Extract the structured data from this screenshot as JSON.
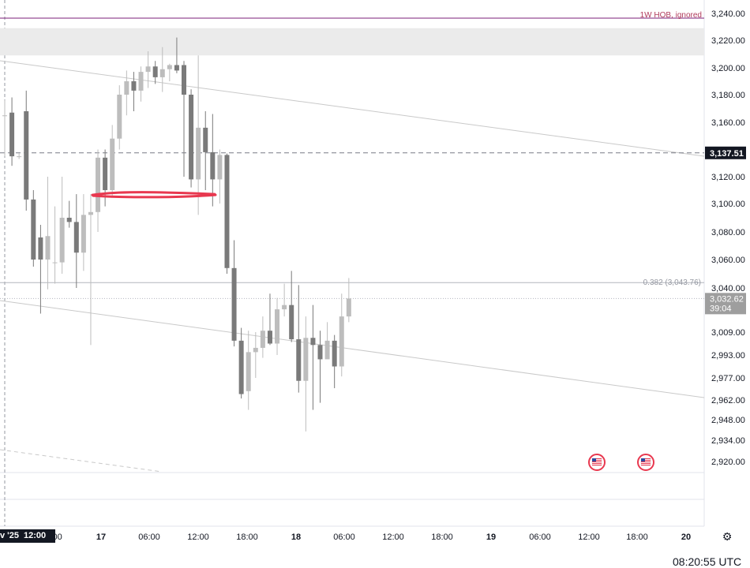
{
  "chart_data": {
    "type": "candlestick",
    "y_ticks": [
      "3,240.00",
      "3,220.00",
      "3,200.00",
      "3,180.00",
      "3,160.00",
      "3,120.00",
      "3,100.00",
      "3,080.00",
      "3,060.00",
      "3,040.00",
      "3,009.00",
      "2,993.00",
      "2,977.00",
      "2,962.00",
      "2,948.00",
      "2,934.00",
      "2,920.00"
    ],
    "y_tick_values": [
      3240,
      3220,
      3200,
      3180,
      3160,
      3120,
      3100,
      3080,
      3060,
      3040,
      3009,
      2993,
      2977,
      2962,
      2948,
      2934,
      2920
    ],
    "x_ticks": [
      "8:00",
      "17",
      "06:00",
      "12:00",
      "18:00",
      "18",
      "06:00",
      "12:00",
      "18:00",
      "19",
      "06:00",
      "12:00",
      "18:00",
      "20"
    ],
    "x_tick_bold": [
      false,
      true,
      false,
      false,
      false,
      true,
      false,
      false,
      false,
      true,
      false,
      false,
      false,
      true
    ],
    "corner_tag": [
      "v '25",
      "12:00"
    ],
    "price_badge": {
      "value": "3,137.51",
      "price": 3137.51,
      "color": "#131722"
    },
    "last_price": {
      "value": "3,032.62",
      "countdown": "39:04",
      "price": 3032.62
    },
    "fib_level": {
      "text": "0.382 (3,043.76)",
      "price": 3043.76
    },
    "order_block": {
      "text": "1W HOB, ignored",
      "price": 3236.5
    },
    "supply_zone": {
      "from": 3209,
      "to": 3229
    },
    "highlight_price": 3107,
    "highlight_color": "#e8384f",
    "candles": [
      {
        "o": 3165,
        "c": 3165,
        "h": 3176,
        "l": 3135
      },
      {
        "o": 3167,
        "c": 3135,
        "h": 3178,
        "l": 3128
      },
      {
        "o": 3135,
        "c": 3135,
        "h": 3137,
        "l": 3133
      },
      {
        "o": 3168,
        "c": 3103,
        "h": 3183,
        "l": 3095
      },
      {
        "o": 3103,
        "c": 3060,
        "h": 3110,
        "l": 3055
      },
      {
        "o": 3076,
        "c": 3060,
        "h": 3085,
        "l": 3022
      },
      {
        "o": 3060,
        "c": 3077,
        "h": 3120,
        "l": 3039
      },
      {
        "o": 3058,
        "c": 3058,
        "h": 3098,
        "l": 3043
      },
      {
        "o": 3058,
        "c": 3090,
        "h": 3120,
        "l": 3050
      },
      {
        "o": 3090,
        "c": 3087,
        "h": 3102,
        "l": 3083
      },
      {
        "o": 3087,
        "c": 3065,
        "h": 3107,
        "l": 3040
      },
      {
        "o": 3065,
        "c": 3092,
        "h": 3107,
        "l": 3052
      },
      {
        "o": 3092,
        "c": 3094,
        "h": 3107,
        "l": 3000
      },
      {
        "o": 3094,
        "c": 3134,
        "h": 3140,
        "l": 3080
      },
      {
        "o": 3134,
        "c": 3110,
        "h": 3140,
        "l": 3098
      },
      {
        "o": 3110,
        "c": 3148,
        "h": 3158,
        "l": 3105
      },
      {
        "o": 3148,
        "c": 3180,
        "h": 3187,
        "l": 3140
      },
      {
        "o": 3180,
        "c": 3190,
        "h": 3198,
        "l": 3165
      },
      {
        "o": 3190,
        "c": 3183,
        "h": 3197,
        "l": 3168
      },
      {
        "o": 3183,
        "c": 3197,
        "h": 3201,
        "l": 3175
      },
      {
        "o": 3197,
        "c": 3201,
        "h": 3212,
        "l": 3185
      },
      {
        "o": 3201,
        "c": 3193,
        "h": 3205,
        "l": 3188
      },
      {
        "o": 3193,
        "c": 3199,
        "h": 3215,
        "l": 3182
      },
      {
        "o": 3199,
        "c": 3202,
        "h": 3203,
        "l": 3190
      },
      {
        "o": 3202,
        "c": 3198,
        "h": 3222,
        "l": 3196
      },
      {
        "o": 3202,
        "c": 3180,
        "h": 3205,
        "l": 3120
      },
      {
        "o": 3180,
        "c": 3118,
        "h": 3184,
        "l": 3112
      },
      {
        "o": 3118,
        "c": 3156,
        "h": 3209,
        "l": 3092
      },
      {
        "o": 3156,
        "c": 3138,
        "h": 3168,
        "l": 3110
      },
      {
        "o": 3138,
        "c": 3118,
        "h": 3166,
        "l": 3098
      },
      {
        "o": 3118,
        "c": 3136,
        "h": 3140,
        "l": 3100
      },
      {
        "o": 3136,
        "c": 3054,
        "h": 3137,
        "l": 3050
      },
      {
        "o": 3054,
        "c": 3003,
        "h": 3074,
        "l": 2999
      },
      {
        "o": 3003,
        "c": 2966,
        "h": 3012,
        "l": 2963
      },
      {
        "o": 2968,
        "c": 2995,
        "h": 3010,
        "l": 2955
      },
      {
        "o": 2995,
        "c": 2998,
        "h": 3009,
        "l": 2977
      },
      {
        "o": 2998,
        "c": 3010,
        "h": 3020,
        "l": 2991
      },
      {
        "o": 3010,
        "c": 3001,
        "h": 3036,
        "l": 3000
      },
      {
        "o": 3001,
        "c": 3025,
        "h": 3033,
        "l": 2993
      },
      {
        "o": 3025,
        "c": 3028,
        "h": 3043,
        "l": 3020
      },
      {
        "o": 3028,
        "c": 3004,
        "h": 3052,
        "l": 3002
      },
      {
        "o": 3004,
        "c": 2975,
        "h": 3042,
        "l": 2967
      },
      {
        "o": 2975,
        "c": 3005,
        "h": 3020,
        "l": 2940
      },
      {
        "o": 3005,
        "c": 3000,
        "h": 3028,
        "l": 2955
      },
      {
        "o": 3000,
        "c": 2990,
        "h": 3010,
        "l": 2960
      },
      {
        "o": 2990,
        "c": 3003,
        "h": 3016,
        "l": 2992
      },
      {
        "o": 3003,
        "c": 2985,
        "h": 3007,
        "l": 2970
      },
      {
        "o": 2985,
        "c": 3020,
        "h": 3036,
        "l": 2978
      },
      {
        "o": 3020,
        "c": 3032.62,
        "h": 3047,
        "l": 3016
      }
    ]
  }
}
